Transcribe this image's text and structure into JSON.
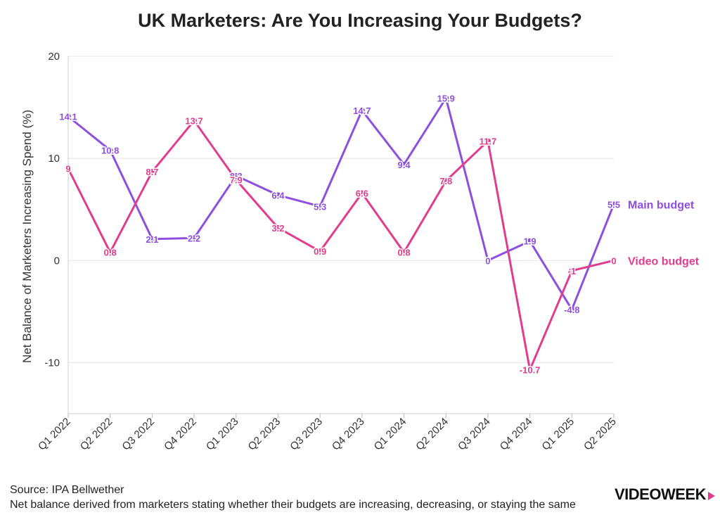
{
  "chart_data": {
    "type": "line",
    "title": "UK Marketers: Are You Increasing Your Budgets?",
    "ylabel": "Net Balance of Marketers Increasing Spend (%)",
    "xlabel": "",
    "ylim": [
      -15,
      20
    ],
    "yticks": [
      -10,
      0,
      10,
      20
    ],
    "grid": true,
    "legend": "right end of lines",
    "categories": [
      "Q1 2022",
      "Q2 2022",
      "Q3 2022",
      "Q4 2022",
      "Q1 2023",
      "Q2 2023",
      "Q3 2023",
      "Q4 2023",
      "Q1 2024",
      "Q2 2024",
      "Q3 2024",
      "Q4 2024",
      "Q1 2025",
      "Q2 2025"
    ],
    "series": [
      {
        "name": "Main budget",
        "color": "#8e4fe0",
        "values": [
          14.1,
          10.8,
          2.1,
          2.2,
          8.3,
          6.4,
          5.3,
          14.7,
          9.4,
          15.9,
          0,
          1.9,
          -4.8,
          5.5
        ]
      },
      {
        "name": "Video budget",
        "color": "#e23c8f",
        "values": [
          9,
          0.8,
          8.7,
          13.7,
          7.9,
          3.2,
          0.9,
          6.6,
          0.8,
          7.8,
          11.7,
          -10.7,
          -1,
          0
        ]
      }
    ]
  },
  "footer": {
    "source": "Source: IPA Bellwether",
    "note": "Net balance derived from marketers stating whether their budgets are increasing, decreasing, or staying the same"
  },
  "logo": {
    "text": "VIDEOWEEK",
    "accent": "#e23c8f"
  }
}
